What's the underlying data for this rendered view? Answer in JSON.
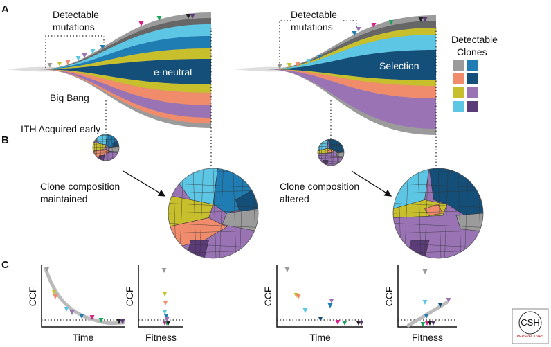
{
  "panel_labels": [
    "A",
    "B",
    "C"
  ],
  "panel_a": {
    "left": {
      "annotation": [
        "Detectable",
        "mutations"
      ],
      "label": "e-neutral",
      "origin": "Big Bang"
    },
    "right": {
      "annotation": [
        "Detectable",
        "mutations"
      ],
      "label": "Selection"
    },
    "legend": {
      "title": [
        "Detectable",
        "Clones"
      ]
    }
  },
  "panel_b": {
    "early": "ITH Acquired early",
    "left": [
      "Clone composition",
      "maintained"
    ],
    "right": [
      "Clone composition",
      "altered"
    ]
  },
  "panel_c": {
    "plots": [
      {
        "y": "CCF",
        "x": "Time"
      },
      {
        "y": "CCF",
        "x": "Fitness"
      },
      {
        "y": "CCF",
        "x": "Time"
      },
      {
        "y": "CCF",
        "x": "Fitness"
      }
    ]
  },
  "logo": {
    "main": "CSH",
    "sub": "PERSPECTIVES"
  }
}
